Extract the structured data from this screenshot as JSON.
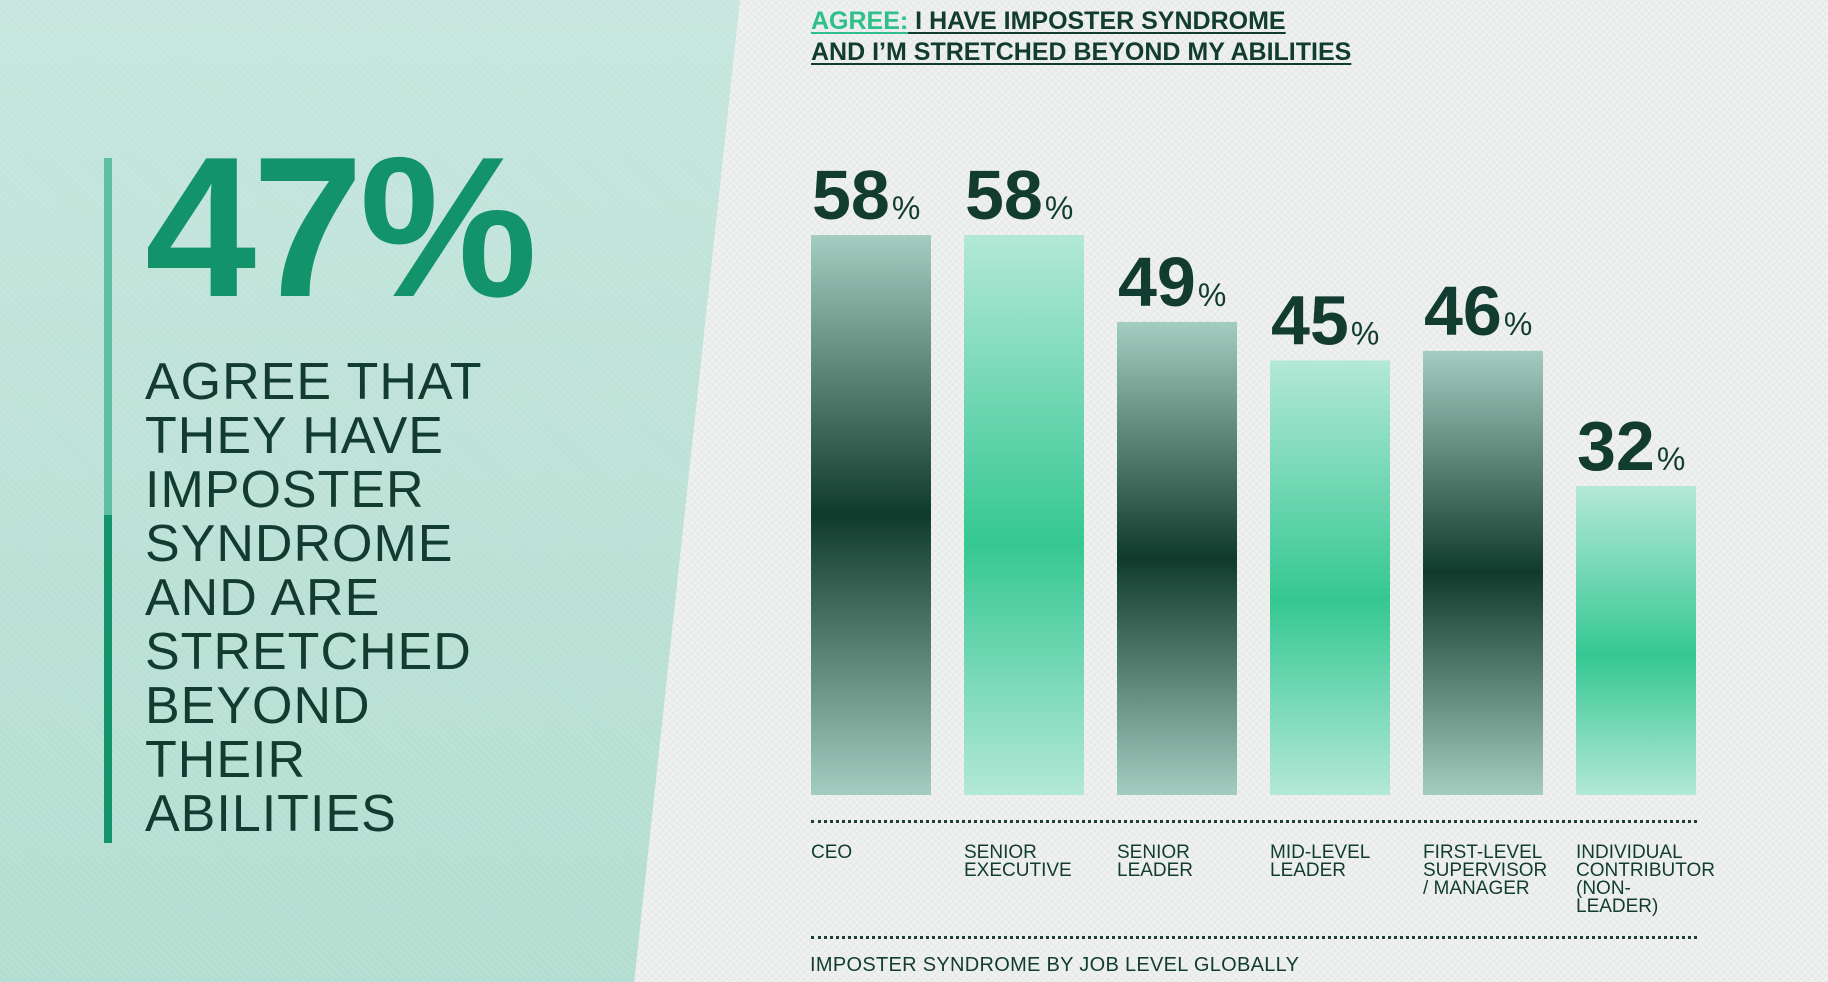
{
  "headline": {
    "stat": "47%",
    "caption": "AGREE THAT\nTHEY HAVE\nIMPOSTER\nSYNDROME\nAND ARE\nSTRETCHED\nBEYOND\nTHEIR\nABILITIES"
  },
  "colors": {
    "accent": "#12936a",
    "dark": "#123c30",
    "bright": "#2fbf8a"
  },
  "chart_data": {
    "type": "bar",
    "title_highlight": "AGREE:",
    "title_line1": " I HAVE IMPOSTER SYNDROME ",
    "title_line2": "AND I’M STRETCHED BEYOND MY ABILITIES",
    "categories": [
      "CEO",
      "SENIOR\nEXECUTIVE",
      "SENIOR\nLEADER",
      "MID-LEVEL\nLEADER",
      "FIRST-LEVEL\nSUPERVISOR\n/ MANAGER",
      "INDIVIDUAL\nCONTRIBUTOR\n(NON-\nLEADER)"
    ],
    "values": [
      58,
      58,
      49,
      45,
      46,
      32
    ],
    "value_suffix": "%",
    "bar_styles": [
      "dark",
      "light",
      "dark",
      "light",
      "dark",
      "light"
    ],
    "ylim": [
      0,
      58
    ],
    "footer": "IMPOSTER SYNDROME BY JOB LEVEL GLOBALLY"
  }
}
